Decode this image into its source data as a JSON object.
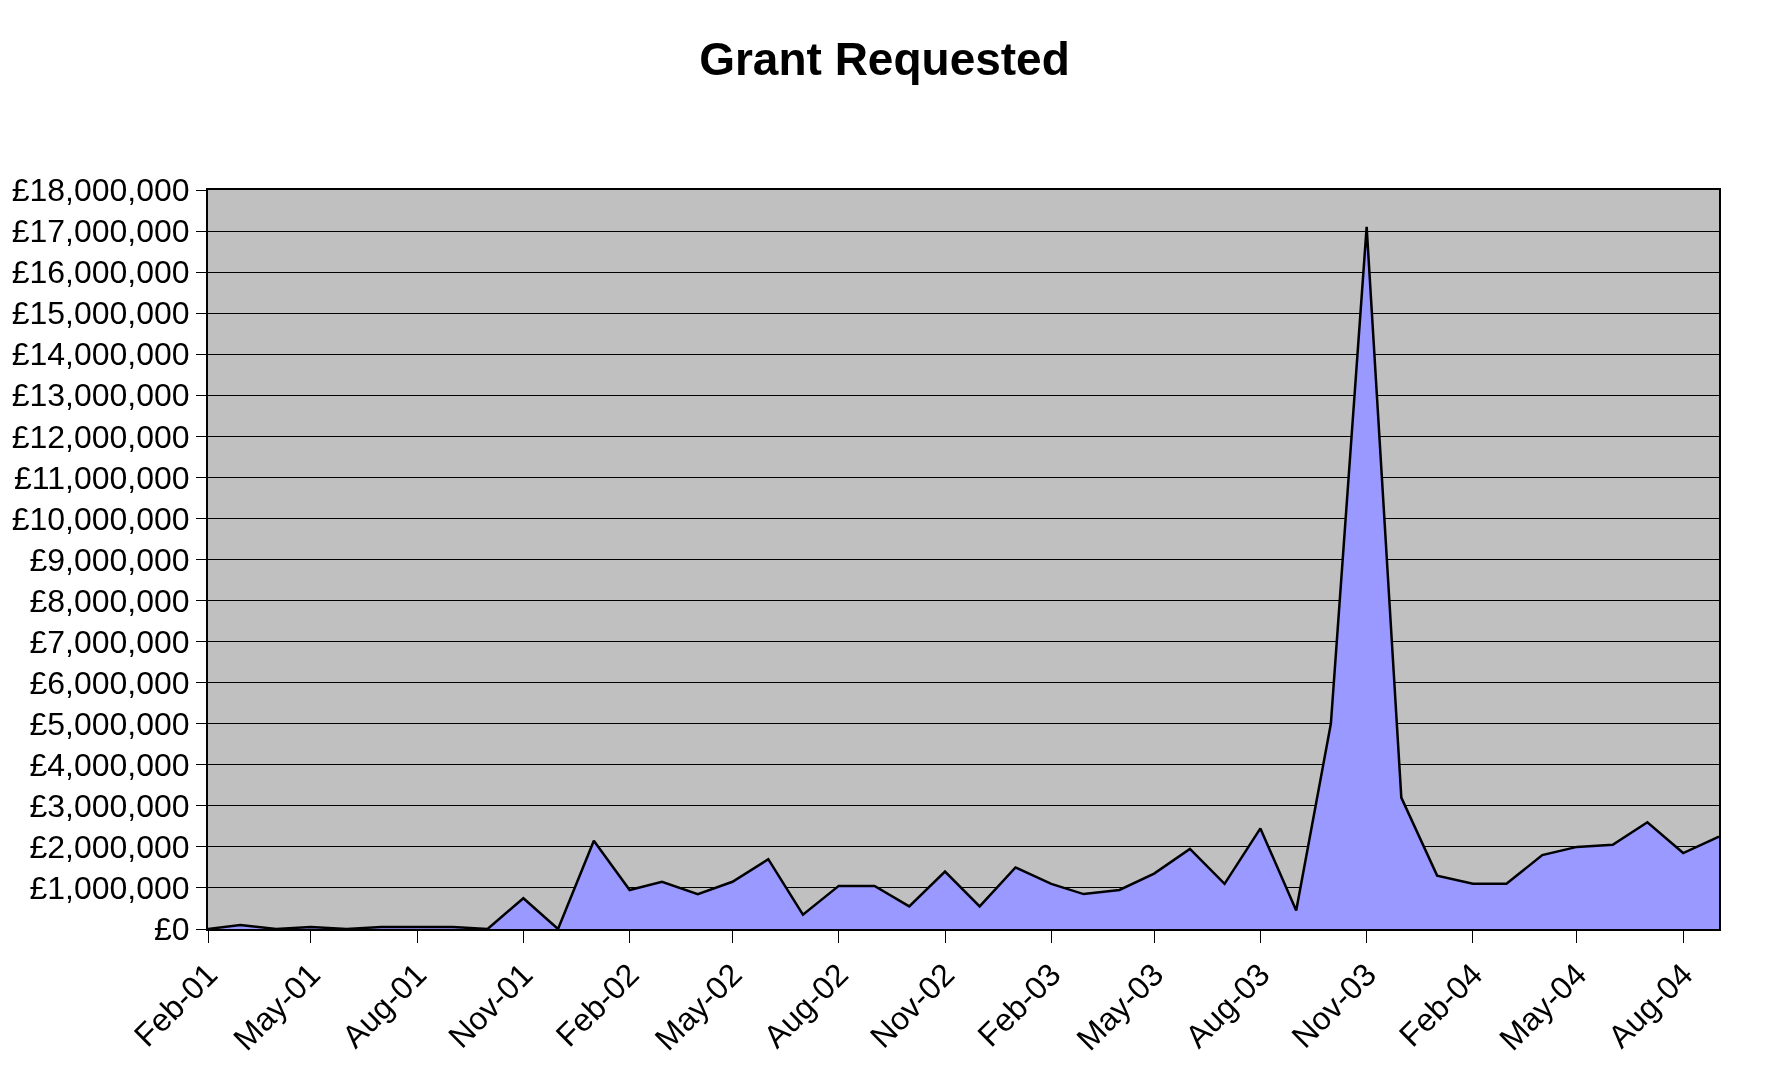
{
  "chart_data": {
    "type": "area",
    "title": "Grant Requested",
    "x": [
      "2001-02",
      "2001-03",
      "2001-04",
      "2001-05",
      "2001-06",
      "2001-07",
      "2001-08",
      "2001-09",
      "2001-10",
      "2001-11",
      "2001-12",
      "2002-01",
      "2002-02",
      "2002-03",
      "2002-04",
      "2002-05",
      "2002-06",
      "2002-07",
      "2002-08",
      "2002-09",
      "2002-10",
      "2002-11",
      "2002-12",
      "2003-01",
      "2003-02",
      "2003-03",
      "2003-04",
      "2003-05",
      "2003-06",
      "2003-07",
      "2003-08",
      "2003-09",
      "2003-10",
      "2003-11",
      "2003-12",
      "2004-01",
      "2004-02",
      "2004-03",
      "2004-04",
      "2004-05",
      "2004-06",
      "2004-07",
      "2004-08",
      "2004-09"
    ],
    "series": [
      {
        "color": "#9999ff",
        "values": [
          0,
          100000,
          0,
          50000,
          0,
          50000,
          50000,
          50000,
          0,
          750000,
          0,
          2150000,
          950000,
          1150000,
          850000,
          1150000,
          1700000,
          350000,
          1050000,
          1050000,
          550000,
          1400000,
          550000,
          1500000,
          1100000,
          850000,
          950000,
          1350000,
          1950000,
          1100000,
          2450000,
          450000,
          5000000,
          17100000,
          3200000,
          1300000,
          1100000,
          1100000,
          1800000,
          2000000,
          2050000,
          2600000,
          1850000,
          2250000
        ]
      }
    ],
    "xlim": [
      "2001-02",
      "2004-09"
    ],
    "xticks": [
      {
        "value": "2001-02",
        "label": "Feb-01"
      },
      {
        "value": "2001-05",
        "label": "May-01"
      },
      {
        "value": "2001-08",
        "label": "Aug-01"
      },
      {
        "value": "2001-11",
        "label": "Nov-01"
      },
      {
        "value": "2002-02",
        "label": "Feb-02"
      },
      {
        "value": "2002-05",
        "label": "May-02"
      },
      {
        "value": "2002-08",
        "label": "Aug-02"
      },
      {
        "value": "2002-11",
        "label": "Nov-02"
      },
      {
        "value": "2003-02",
        "label": "Feb-03"
      },
      {
        "value": "2003-05",
        "label": "May-03"
      },
      {
        "value": "2003-08",
        "label": "Aug-03"
      },
      {
        "value": "2003-11",
        "label": "Nov-03"
      },
      {
        "value": "2004-02",
        "label": "Feb-04"
      },
      {
        "value": "2004-05",
        "label": "May-04"
      },
      {
        "value": "2004-08",
        "label": "Aug-04"
      }
    ],
    "ylim": [
      0,
      18000000
    ],
    "yticks": [
      {
        "value": 0,
        "label": "£0"
      },
      {
        "value": 1000000,
        "label": "£1,000,000"
      },
      {
        "value": 2000000,
        "label": "£2,000,000"
      },
      {
        "value": 3000000,
        "label": "£3,000,000"
      },
      {
        "value": 4000000,
        "label": "£4,000,000"
      },
      {
        "value": 5000000,
        "label": "£5,000,000"
      },
      {
        "value": 6000000,
        "label": "£6,000,000"
      },
      {
        "value": 7000000,
        "label": "£7,000,000"
      },
      {
        "value": 8000000,
        "label": "£8,000,000"
      },
      {
        "value": 9000000,
        "label": "£9,000,000"
      },
      {
        "value": 10000000,
        "label": "£10,000,000"
      },
      {
        "value": 11000000,
        "label": "£11,000,000"
      },
      {
        "value": 12000000,
        "label": "£12,000,000"
      },
      {
        "value": 13000000,
        "label": "£13,000,000"
      },
      {
        "value": 14000000,
        "label": "£14,000,000"
      },
      {
        "value": 15000000,
        "label": "£15,000,000"
      },
      {
        "value": 16000000,
        "label": "£16,000,000"
      },
      {
        "value": 17000000,
        "label": "£17,000,000"
      },
      {
        "value": 18000000,
        "label": "£18,000,000"
      }
    ],
    "grid": "y"
  }
}
